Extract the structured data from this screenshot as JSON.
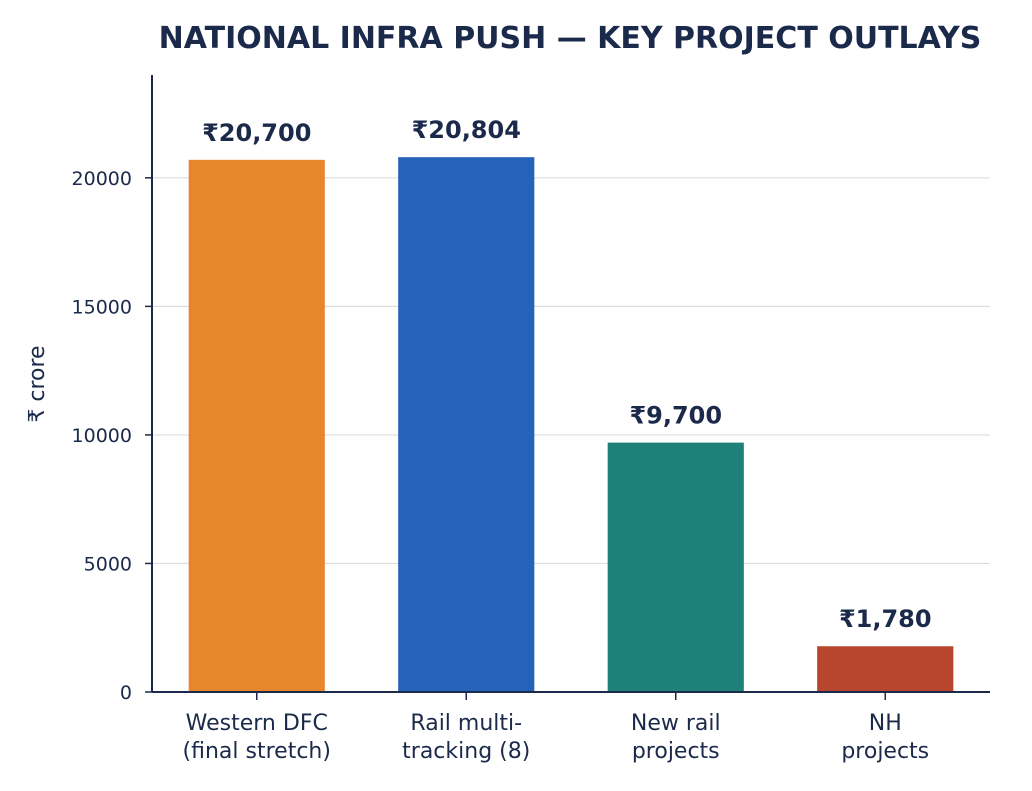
{
  "chart_data": {
    "type": "bar",
    "title": "NATIONAL INFRA PUSH — KEY PROJECT OUTLAYS",
    "xlabel": "",
    "ylabel": "₹ crore",
    "categories": [
      [
        "Western DFC",
        "(final stretch)"
      ],
      [
        "Rail multi-",
        "tracking (8)"
      ],
      [
        "New rail",
        "projects"
      ],
      [
        "NH",
        "projects"
      ]
    ],
    "values": [
      20700,
      20804,
      9700,
      1780
    ],
    "data_labels": [
      "₹20,700",
      "₹20,804",
      "₹9,700",
      "₹1,780"
    ],
    "bar_colors": [
      "#E8862E",
      "#2563B8",
      "#1F7F79",
      "#B8462F"
    ],
    "ylim": [
      0,
      24000
    ],
    "yticks": [
      0,
      5000,
      10000,
      15000,
      20000
    ],
    "grid": true,
    "legend": "none"
  },
  "colors": {
    "text": "#1b2a4a",
    "axis": "#1b2a4a",
    "grid": "#dddddd"
  }
}
